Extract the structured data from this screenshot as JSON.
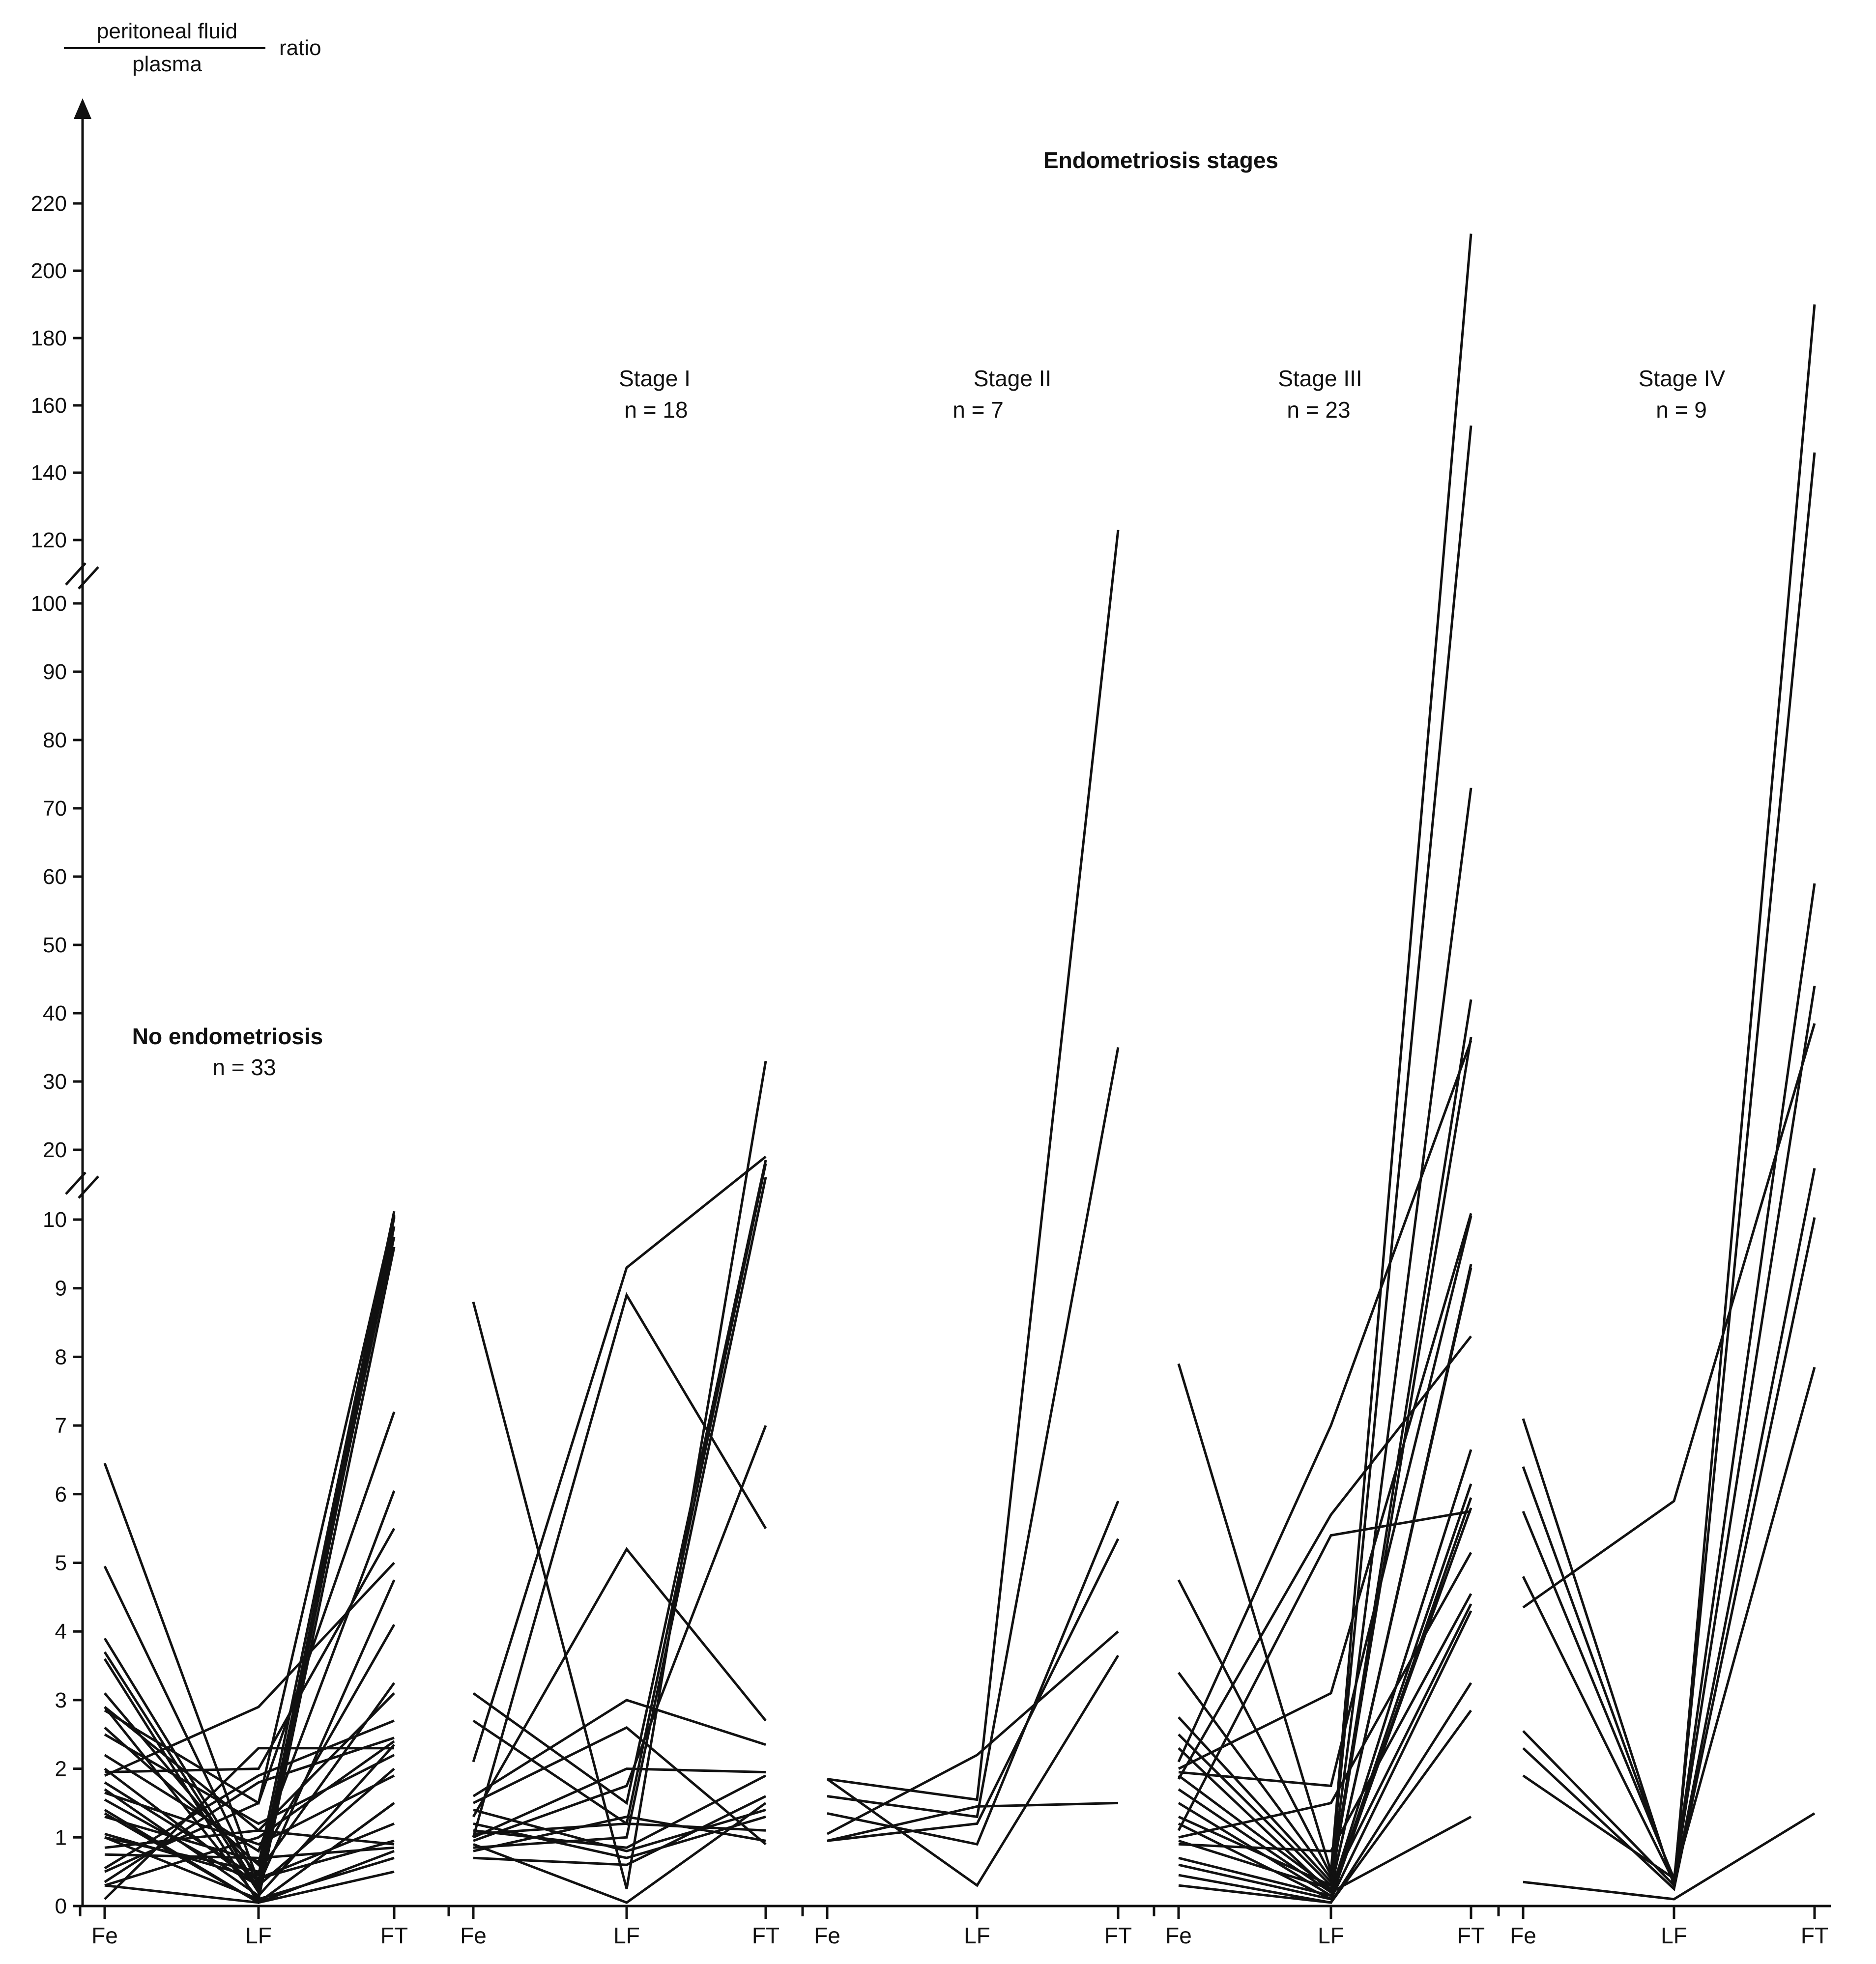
{
  "chart_data": {
    "type": "line",
    "title": "Endometriosis stages",
    "ylabel": {
      "numerator": "peritoneal fluid",
      "denominator": "plasma",
      "suffix": "ratio"
    },
    "y_axis": {
      "break_scale": true,
      "lower_ticks": [
        0,
        1,
        2,
        3,
        4,
        5,
        6,
        7,
        8,
        9,
        10
      ],
      "middle_ticks": [
        20,
        30,
        40,
        50,
        60,
        70,
        80,
        90,
        100
      ],
      "upper_ticks": [
        120,
        140,
        160,
        180,
        200,
        220
      ]
    },
    "categories": [
      "Fe",
      "LF",
      "FT"
    ],
    "groups": [
      {
        "name": "No endometriosis",
        "n_label": "n = 33",
        "bold": true,
        "series": [
          [
            6.45,
            0.35,
            10.35
          ],
          [
            4.95,
            0.3,
            10.2
          ],
          [
            3.9,
            0.25,
            10.05
          ],
          [
            3.7,
            0.2,
            9.9
          ],
          [
            3.1,
            0.45,
            9.75
          ],
          [
            2.9,
            0.1,
            9.6
          ],
          [
            2.85,
            1.5,
            7.2
          ],
          [
            2.2,
            0.8,
            6.05
          ],
          [
            1.95,
            2.0,
            5.5
          ],
          [
            1.9,
            2.9,
            5.0
          ],
          [
            1.55,
            0.3,
            4.75
          ],
          [
            1.3,
            0.65,
            4.1
          ],
          [
            1.0,
            0.5,
            3.25
          ],
          [
            0.85,
            1.1,
            3.1
          ],
          [
            0.55,
            1.9,
            2.7
          ],
          [
            0.35,
            1.8,
            2.45
          ],
          [
            0.3,
            1.0,
            2.4
          ],
          [
            0.1,
            2.3,
            2.3
          ],
          [
            2.5,
            1.2,
            2.2
          ],
          [
            1.65,
            0.9,
            1.9
          ],
          [
            1.4,
            0.05,
            1.5
          ],
          [
            1.05,
            0.4,
            0.95
          ],
          [
            2.9,
            1.1,
            0.9
          ],
          [
            3.6,
            0.05,
            0.8
          ],
          [
            0.3,
            0.05,
            0.5
          ],
          [
            1.7,
            0.15,
            2.35
          ],
          [
            1.0,
            0.1,
            0.7
          ],
          [
            0.75,
            0.7,
            0.85
          ],
          [
            1.35,
            0.05,
            1.5
          ],
          [
            2.0,
            0.3,
            2.0
          ],
          [
            0.5,
            1.5,
            10.5
          ],
          [
            2.6,
            0.6,
            11.0
          ],
          [
            1.8,
            0.4,
            1.2
          ]
        ]
      },
      {
        "name": "Stage I",
        "n_label": "n = 18",
        "bold": false,
        "series": [
          [
            8.8,
            0.25,
            33.0
          ],
          [
            2.1,
            9.3,
            19.0
          ],
          [
            3.1,
            1.5,
            18.5
          ],
          [
            2.7,
            1.2,
            18.0
          ],
          [
            1.0,
            8.9,
            5.5
          ],
          [
            1.3,
            5.2,
            2.7
          ],
          [
            1.6,
            3.0,
            2.35
          ],
          [
            1.5,
            2.6,
            0.9
          ],
          [
            1.0,
            2.0,
            1.95
          ],
          [
            0.95,
            1.75,
            7.0
          ],
          [
            0.85,
            1.0,
            16.0
          ],
          [
            1.1,
            0.85,
            1.9
          ],
          [
            0.7,
            0.6,
            1.6
          ],
          [
            0.9,
            0.05,
            1.5
          ],
          [
            1.2,
            0.7,
            1.3
          ],
          [
            1.05,
            1.2,
            1.1
          ],
          [
            0.8,
            1.3,
            0.95
          ],
          [
            1.4,
            0.8,
            1.4
          ]
        ]
      },
      {
        "name": "Stage II",
        "n_label": "n = 7",
        "bold": false,
        "series": [
          [
            1.85,
            1.55,
            123.0
          ],
          [
            1.6,
            1.3,
            35.0
          ],
          [
            1.35,
            0.9,
            5.9
          ],
          [
            0.95,
            1.2,
            5.35
          ],
          [
            1.05,
            2.2,
            4.0
          ],
          [
            1.85,
            0.3,
            3.65
          ],
          [
            0.95,
            1.45,
            1.5
          ]
        ]
      },
      {
        "name": "Stage III",
        "n_label": "n = 23",
        "bold": false,
        "series": [
          [
            7.9,
            0.5,
            211.0
          ],
          [
            4.75,
            0.45,
            154.0
          ],
          [
            3.4,
            0.4,
            73.0
          ],
          [
            2.75,
            0.35,
            42.0
          ],
          [
            2.5,
            0.3,
            36.5
          ],
          [
            2.1,
            7.0,
            36.0
          ],
          [
            2.0,
            3.1,
            10.7
          ],
          [
            1.95,
            1.75,
            10.3
          ],
          [
            1.9,
            0.25,
            9.35
          ],
          [
            1.85,
            5.7,
            8.3
          ],
          [
            1.7,
            0.2,
            6.65
          ],
          [
            1.5,
            0.15,
            6.15
          ],
          [
            1.2,
            0.1,
            5.95
          ],
          [
            1.1,
            5.4,
            5.75
          ],
          [
            1.0,
            1.5,
            5.15
          ],
          [
            0.9,
            0.8,
            4.55
          ],
          [
            0.6,
            0.1,
            4.3
          ],
          [
            0.45,
            0.05,
            3.25
          ],
          [
            0.3,
            0.05,
            2.85
          ],
          [
            2.3,
            0.2,
            1.3
          ],
          [
            1.3,
            0.3,
            4.4
          ],
          [
            0.95,
            0.25,
            9.3
          ],
          [
            0.7,
            0.15,
            5.8
          ]
        ]
      },
      {
        "name": "Stage IV",
        "n_label": "n = 9",
        "bold": false,
        "series": [
          [
            7.1,
            0.3,
            190.0
          ],
          [
            6.4,
            0.35,
            146.0
          ],
          [
            5.75,
            0.4,
            59.0
          ],
          [
            4.8,
            0.35,
            44.0
          ],
          [
            4.35,
            5.9,
            38.5
          ],
          [
            2.55,
            0.3,
            17.3
          ],
          [
            2.3,
            0.25,
            10.1
          ],
          [
            1.9,
            0.4,
            7.85
          ],
          [
            0.35,
            0.1,
            1.35
          ]
        ]
      }
    ]
  }
}
